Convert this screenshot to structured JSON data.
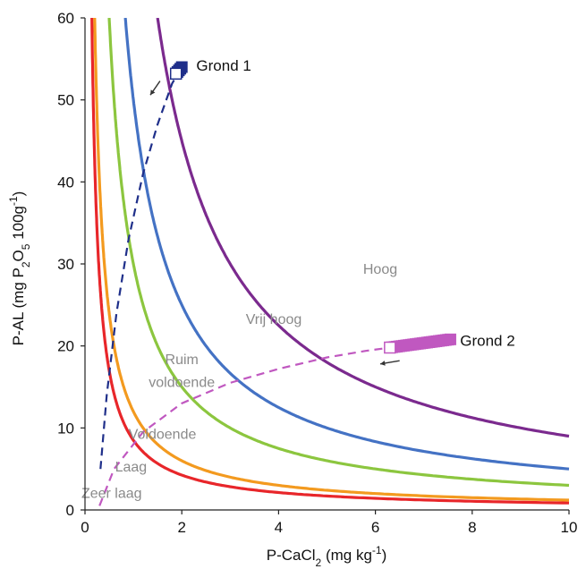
{
  "chart_data": {
    "type": "line",
    "title": "",
    "xlabel": {
      "prefix": "P-CaCl",
      "sub": "2",
      "suffix": " (mg kg",
      "sup": "-1",
      "end": ")"
    },
    "ylabel": {
      "prefix": "P-AL (mg P",
      "sub1": "2",
      "mid1": "O",
      "sub2": "5",
      "mid2": " 100g",
      "sup": "-1",
      "end": ")"
    },
    "xlim": [
      0,
      10
    ],
    "ylim": [
      0,
      60
    ],
    "xticks": [
      "0",
      "2",
      "4",
      "6",
      "8",
      "10"
    ],
    "yticks": [
      "0",
      "10",
      "20",
      "30",
      "40",
      "50",
      "60"
    ],
    "grid": false,
    "boundaries": [
      {
        "color": "#e8262a",
        "k": 8.5
      },
      {
        "color": "#f39a1f",
        "k": 12
      },
      {
        "color": "#8cc63f",
        "k": 30
      },
      {
        "color": "#4472c4",
        "k": 50
      },
      {
        "color": "#7b2a8e",
        "k": 90
      }
    ],
    "regions": [
      {
        "label": "Zeer laag",
        "x": 0.55,
        "y": 1.5
      },
      {
        "label": "Laag",
        "x": 0.95,
        "y": 4.7
      },
      {
        "label": "Voldoende",
        "x": 1.6,
        "y": 8.7
      },
      {
        "label": "Ruim",
        "x": 2.0,
        "y": 17.8
      },
      {
        "label": "voldoende",
        "x": 2.0,
        "y": 15.0
      },
      {
        "label": "Vrij hoog",
        "x": 3.9,
        "y": 22.7
      },
      {
        "label": "Hoog",
        "x": 6.1,
        "y": 28.8
      }
    ],
    "paths": [
      {
        "name": "Grond 1",
        "color": "#1f2f8a",
        "x": [
          0.32,
          0.45,
          0.65,
          0.9,
          1.2,
          1.5,
          1.8,
          1.9
        ],
        "y": [
          5,
          14,
          24,
          33,
          41,
          47,
          52,
          53
        ],
        "start_marker": {
          "x": 1.88,
          "y": 53.2,
          "fill": "#ffffff"
        },
        "end_marker": {
          "x": 2.0,
          "y": 54.0
        },
        "trail_count": 4,
        "label": "Grond 1",
        "label_pos": {
          "x": 2.3,
          "y": 54.2
        }
      },
      {
        "name": "Grond 2",
        "color": "#c058c0",
        "x": [
          0.3,
          0.6,
          1.2,
          2.0,
          3.0,
          4.0,
          5.0,
          5.8,
          6.3
        ],
        "y": [
          0.5,
          5,
          9.5,
          13,
          15.5,
          17.2,
          18.6,
          19.4,
          19.8
        ],
        "start_marker": {
          "x": 6.3,
          "y": 19.8,
          "fill": "#ffffff"
        },
        "end_marker": {
          "x": 7.55,
          "y": 20.8
        },
        "trail_count": 26,
        "label": "Grond 2",
        "label_pos": {
          "x": 7.75,
          "y": 20.7
        }
      }
    ],
    "arrows": [
      {
        "color": "#333333",
        "from": [
          1.55,
          52.3
        ],
        "to": [
          1.35,
          50.6
        ]
      },
      {
        "color": "#333333",
        "from": [
          6.5,
          18.2
        ],
        "to": [
          6.1,
          17.8
        ]
      }
    ]
  }
}
